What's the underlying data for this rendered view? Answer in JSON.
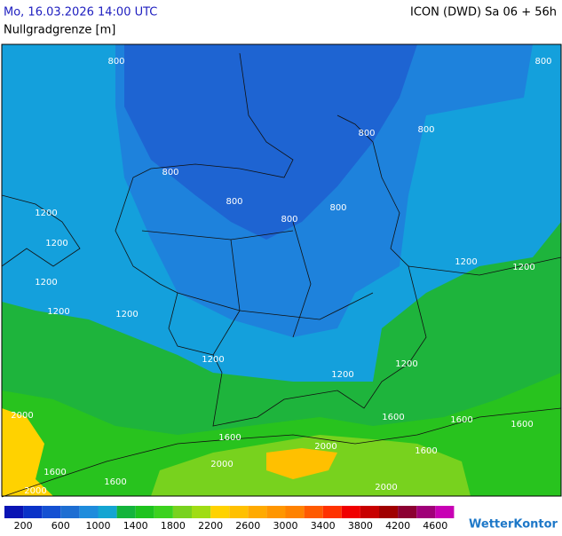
{
  "header": {
    "datetime": "Mo, 16.03.2026 14:00 UTC",
    "model": "ICON (DWD) Sa 06 + 56h",
    "title": "Nullgradgrenze [m]"
  },
  "map": {
    "contour_labels": [
      800,
      800,
      800,
      800,
      800,
      800,
      800,
      800,
      1200,
      1200,
      1200,
      1200,
      1200,
      1200,
      1200,
      1200,
      1200,
      1200,
      1600,
      1600,
      1600,
      1600,
      1600,
      1600,
      1600,
      2000,
      2000,
      2000,
      2000,
      2000
    ]
  },
  "legend": {
    "colors": [
      "#0a14b4",
      "#0a32c8",
      "#1450d2",
      "#1e6ed2",
      "#1e8cdc",
      "#14a5d2",
      "#14b43c",
      "#1ec31e",
      "#3cd21e",
      "#78d21e",
      "#a0dc14",
      "#ffd200",
      "#ffc000",
      "#ffaa00",
      "#ff9600",
      "#ff8200",
      "#ff5a00",
      "#ff3200",
      "#f00000",
      "#c80000",
      "#a00000",
      "#8c0032",
      "#a00078",
      "#c800b4"
    ],
    "labels": [
      200,
      600,
      1000,
      1400,
      1800,
      2200,
      2600,
      3000,
      3400,
      3800,
      4200,
      4600
    ]
  },
  "logo": "WetterKontor"
}
